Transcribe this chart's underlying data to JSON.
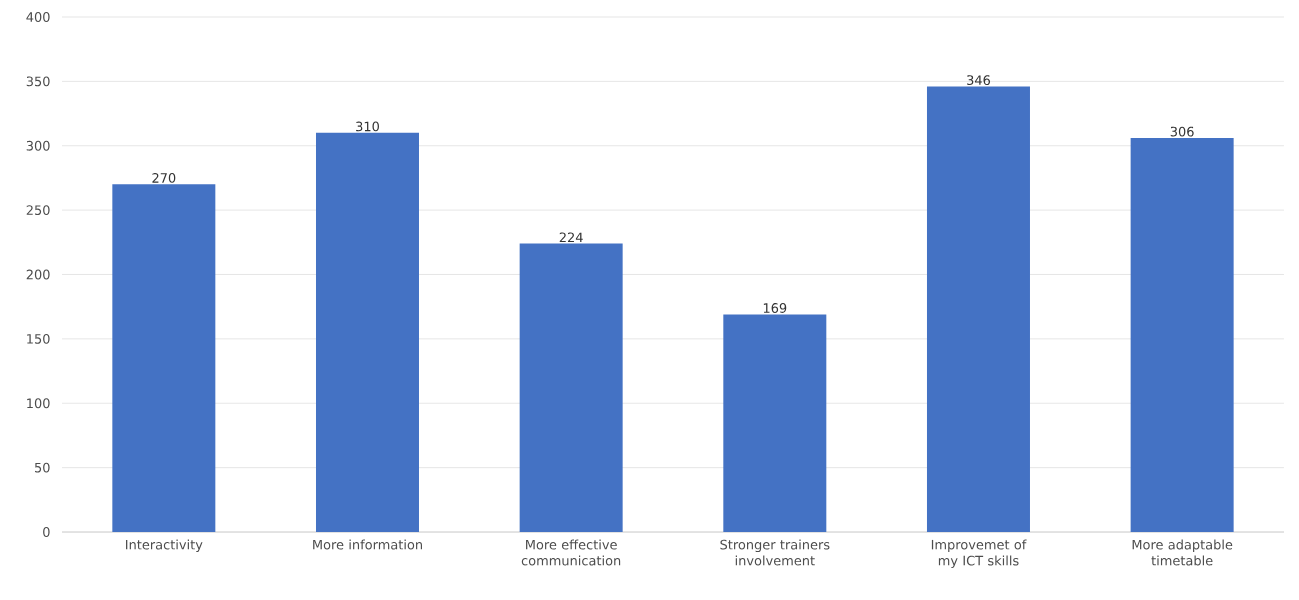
{
  "chart_data": {
    "type": "bar",
    "categories": [
      "Interactivity",
      "More information",
      "More effective communication",
      "Stronger trainers involvement",
      "Improvemet of my ICT skills",
      "More adaptable timetable"
    ],
    "values": [
      270,
      310,
      224,
      169,
      346,
      306
    ],
    "color": "#4472c4",
    "ylim": [
      0,
      400
    ],
    "yticks": [
      0,
      50,
      100,
      150,
      200,
      250,
      300,
      350,
      400
    ],
    "grid": "y",
    "data_labels": true
  }
}
